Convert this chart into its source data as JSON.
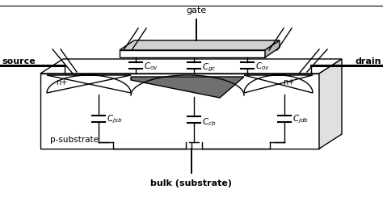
{
  "bg_color": "#ffffff",
  "line_color": "#000000",
  "labels": {
    "gate": "gate",
    "source": "source",
    "drain": "drain",
    "bulk": "bulk (substrate)",
    "psub": "p-substrate",
    "n_left": "n+",
    "n_right": "n+",
    "cov_left": "$C_{ov}$",
    "cgc": "$C_{gc}$",
    "cov_right": "$C_{ov}$",
    "cjsb": "$C_{jsb}$",
    "ccb": "$C_{cb}$",
    "cjdb": "$C_{jdb}$"
  },
  "figsize": [
    4.74,
    2.51
  ],
  "dpi": 100
}
